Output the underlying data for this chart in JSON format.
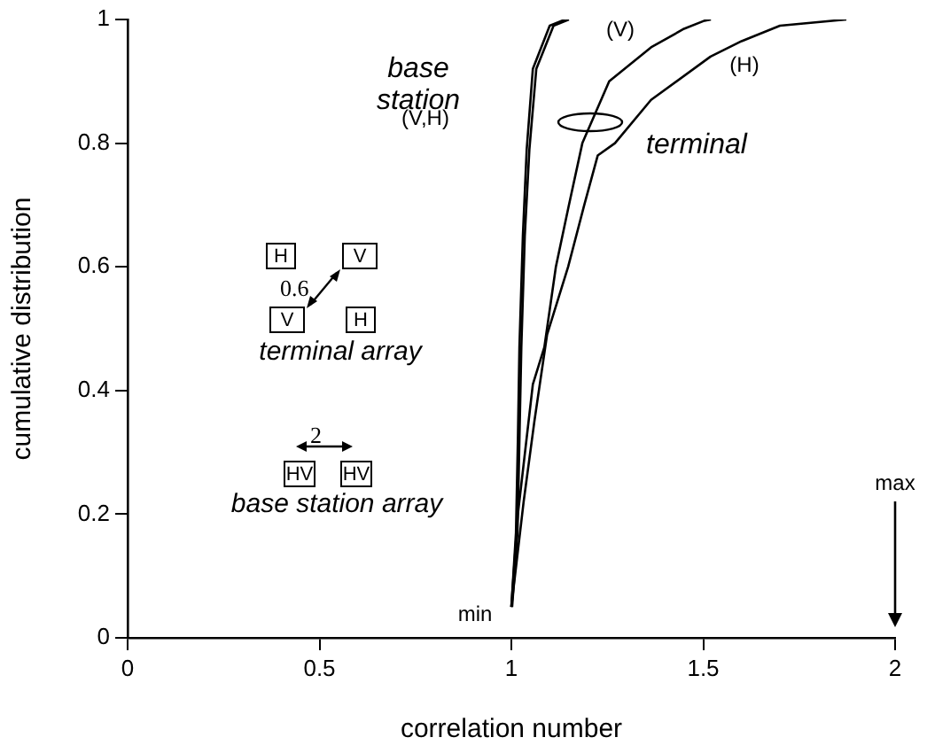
{
  "chart_data": {
    "type": "line",
    "xlabel": "correlation number",
    "ylabel": "cumulative distribution",
    "xlim": [
      0,
      2
    ],
    "xticks": [
      0,
      0.5,
      1,
      1.5,
      2
    ],
    "ylim": [
      0,
      1
    ],
    "yticks": [
      0,
      0.2,
      0.4,
      0.6,
      0.8,
      1
    ],
    "grid": false,
    "legend": false,
    "marker": "none",
    "line_style": "solid",
    "series": [
      {
        "color": "#000000",
        "x": [
          1.0,
          1.012,
          1.017,
          1.021,
          1.03,
          1.04,
          1.056,
          1.1,
          1.14
        ],
        "values": [
          0.05,
          0.17,
          0.32,
          0.47,
          0.65,
          0.79,
          0.92,
          0.99,
          1.0
        ]
      },
      {
        "color": "#000000",
        "x": [
          1.002,
          1.016,
          1.021,
          1.026,
          1.035,
          1.047,
          1.065,
          1.11,
          1.15
        ],
        "values": [
          0.05,
          0.17,
          0.32,
          0.47,
          0.65,
          0.79,
          0.92,
          0.99,
          1.0
        ]
      },
      {
        "color": "#000000",
        "x": [
          1.0,
          1.017,
          1.056,
          1.086,
          1.116,
          1.15,
          1.185,
          1.255,
          1.364,
          1.45,
          1.503,
          1.52
        ],
        "values": [
          0.05,
          0.2,
          0.41,
          0.47,
          0.6,
          0.7,
          0.8,
          0.9,
          0.955,
          0.985,
          0.998,
          1.0
        ]
      },
      {
        "color": "#000000",
        "x": [
          1.0,
          1.032,
          1.06,
          1.093,
          1.148,
          1.19,
          1.225,
          1.27,
          1.364,
          1.519,
          1.6,
          1.7,
          1.873
        ],
        "values": [
          0.05,
          0.22,
          0.35,
          0.49,
          0.6,
          0.7,
          0.78,
          0.8,
          0.87,
          0.94,
          0.965,
          0.99,
          1.0
        ]
      }
    ],
    "annotations": [
      "base station",
      "(V,H)",
      "(V)",
      "(H)",
      "terminal",
      "min",
      "max",
      "H",
      "V",
      "0.6",
      "V",
      "H",
      "terminal array",
      "2",
      "HV",
      "HV",
      "base station array"
    ]
  }
}
